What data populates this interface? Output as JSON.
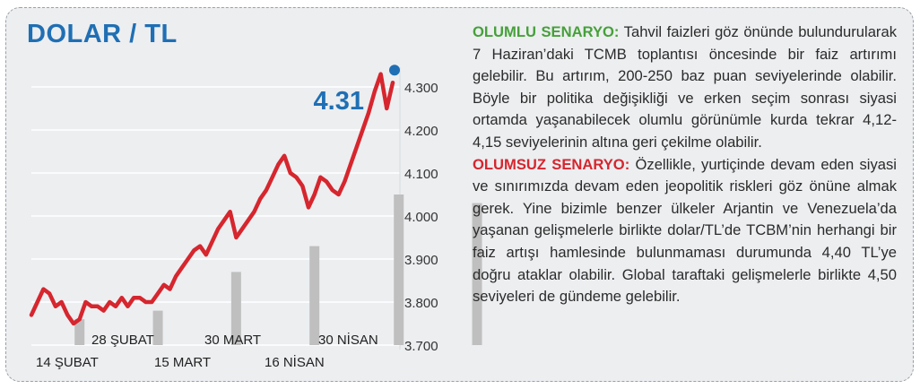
{
  "colors": {
    "title": "#1f6fb4",
    "line": "#d6262e",
    "bars": "#bfbfbf",
    "value_label": "#1f6fb4",
    "positive_heading": "#46a03a",
    "negative_heading": "#d6262e",
    "panel_bg": "#eceef0"
  },
  "chart_data": {
    "type": "line",
    "title": "DOLAR / TL",
    "last_value_label": "4.31",
    "ylim": [
      3.7,
      4.3
    ],
    "y_ticks": [
      3.7,
      3.8,
      3.9,
      4.0,
      4.1,
      4.2,
      4.3
    ],
    "y_tick_labels": [
      "3.700",
      "3.800",
      "3.900",
      "4.000",
      "4.100",
      "4.200",
      "4.300"
    ],
    "x_labels_upper": [
      "28 ŞUBAT",
      "30 MART",
      "30 NİSAN"
    ],
    "x_labels_lower": [
      "14 ŞUBAT",
      "15 MART",
      "16 NİSAN"
    ],
    "grid": true,
    "series": [
      {
        "values": [
          3.77,
          3.8,
          3.83,
          3.82,
          3.79,
          3.8,
          3.77,
          3.75,
          3.76,
          3.8,
          3.79,
          3.79,
          3.78,
          3.8,
          3.79,
          3.81,
          3.79,
          3.81,
          3.81,
          3.8,
          3.8,
          3.82,
          3.84,
          3.83,
          3.86,
          3.88,
          3.9,
          3.92,
          3.93,
          3.91,
          3.94,
          3.97,
          3.99,
          4.01,
          3.95,
          3.97,
          3.99,
          4.01,
          4.04,
          4.06,
          4.09,
          4.12,
          4.14,
          4.1,
          4.09,
          4.07,
          4.02,
          4.05,
          4.09,
          4.08,
          4.06,
          4.05,
          4.08,
          4.12,
          4.16,
          4.2,
          4.24,
          4.29,
          4.33,
          4.25,
          4.31
        ]
      }
    ],
    "bars": [
      {
        "x": 8,
        "value": 3.76
      },
      {
        "x": 21,
        "value": 3.78
      },
      {
        "x": 34,
        "value": 3.87
      },
      {
        "x": 47,
        "value": 3.93
      },
      {
        "x": 61,
        "value": 4.05
      },
      {
        "x": 74,
        "value": 4.03
      }
    ]
  },
  "text": {
    "positive_heading": "OLUMLU SENARYO:",
    "positive_body": "Tahvil faizleri göz önünde bulundurularak 7 Haziran’daki TCMB toplantısı öncesinde bir faiz artırımı gelebilir. Bu artırım, 200-250 baz puan seviyelerinde olabilir. Böyle bir politika değişikliği ve erken seçim sonrası siyasi ortamda yaşanabilecek olumlu görünümle kurda tekrar 4,12-4,15 seviyelerinin altına geri çekilme olabilir.",
    "negative_heading": "OLUMSUZ SENARYO:",
    "negative_body": "Özellikle, yurtiçinde devam eden siyasi ve sınırımızda devam eden jeopolitik riskleri göz önüne almak gerek. Yine bizimle benzer ülkeler Arjantin ve Venezuela’da yaşanan gelişmelerle birlikte dolar/TL’de TCBM’nin herhangi bir faiz artışı hamlesinde bulunmaması durumunda 4,40 TL’ye doğru ataklar olabilir. Global taraftaki gelişmelerle birlikte 4,50 seviyeleri de gündeme gelebilir."
  }
}
